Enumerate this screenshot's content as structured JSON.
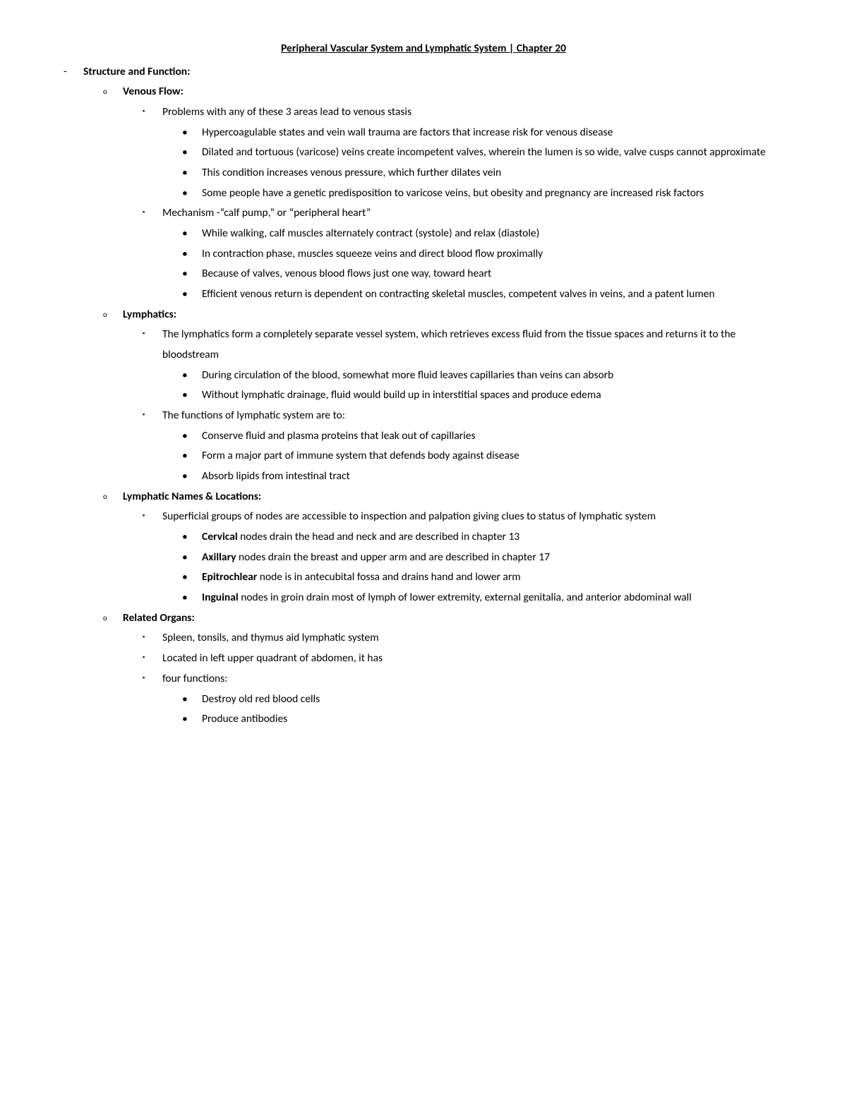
{
  "title": "Peripheral Vascular System and Lymphatic System | Chapter 20",
  "h1": "Structure and Function:",
  "s1": {
    "h": "Venous Flow:",
    "a": {
      "h": "Problems with any of these 3 areas lead to venous stasis",
      "i1": "Hypercoagulable states and vein wall trauma are factors that increase risk for venous disease",
      "i2": "Dilated and tortuous (varicose) veins create incompetent valves, wherein the lumen is so wide, valve cusps cannot approximate",
      "i3": "This condition increases venous pressure, which further dilates vein",
      "i4": "Some people have a genetic predisposition to varicose veins, but obesity and pregnancy are increased risk factors"
    },
    "b": {
      "h": "Mechanism -“calf pump,” or “peripheral heart”",
      "i1": " While walking, calf muscles alternately contract (systole) and relax (diastole)",
      "i2": "In contraction phase, muscles squeeze veins and direct blood flow proximally",
      "i3": "Because of valves, venous blood flows just one way, toward heart",
      "i4": "Efficient venous return is dependent on contracting skeletal muscles, competent valves in veins, and a patent lumen"
    }
  },
  "s2": {
    "h": "Lymphatics:",
    "a": {
      "h": "The lymphatics form a completely separate vessel system, which retrieves excess fluid from the tissue spaces and returns it to the bloodstream",
      "i1": "During circulation of the blood, somewhat more fluid leaves capillaries than veins can absorb",
      "i2": "Without lymphatic drainage, fluid would build up in interstitial spaces and produce edema"
    },
    "b": {
      "h": "The functions of lymphatic system are to:",
      "i1": "Conserve fluid and plasma proteins that leak out of capillaries",
      "i2": "Form a major part of immune system that defends body against disease",
      "i3": "Absorb lipids from intestinal tract"
    }
  },
  "s3": {
    "h": "Lymphatic Names & Locations:",
    "a": {
      "h": "Superficial groups of nodes are accessible to inspection and palpation giving clues to status of lymphatic system",
      "i1b": "Cervical",
      "i1": " nodes drain the head and neck and are described in chapter 13",
      "i2b": "Axillary",
      "i2": " nodes drain the breast and upper arm and are described in chapter 17",
      "i3b": "Epitrochlear",
      "i3": " node is in antecubital fossa and drains hand and lower arm",
      "i4b": "Inguinal",
      "i4": " nodes in groin drain most of lymph of lower extremity, external genitalia, and anterior abdominal wall"
    }
  },
  "s4": {
    "h": "Related Organs:",
    "i1": "Spleen, tonsils, and thymus aid lymphatic system",
    "i2": "Located in left upper quadrant of abdomen, it has",
    "i3": "four functions:",
    "s1": "Destroy old red blood cells",
    "s2": "Produce antibodies"
  }
}
